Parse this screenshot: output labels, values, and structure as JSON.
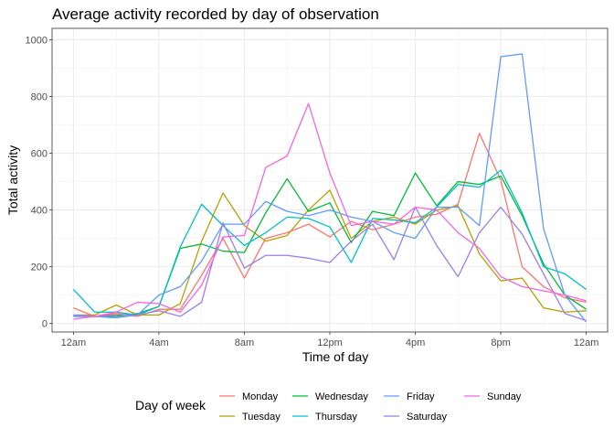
{
  "chart_data": {
    "type": "line",
    "title": "Average activity recorded by day of observation",
    "xlabel": "Time of day",
    "ylabel": "Total activity",
    "x": [
      0,
      1,
      2,
      3,
      4,
      5,
      6,
      7,
      8,
      9,
      10,
      11,
      12,
      13,
      14,
      15,
      16,
      17,
      18,
      19,
      20,
      21,
      22,
      23,
      24
    ],
    "xlim": [
      -1,
      25
    ],
    "ylim": [
      -30,
      1040
    ],
    "x_ticks": [
      0,
      4,
      8,
      12,
      16,
      20,
      24
    ],
    "x_tick_labels": [
      "12am",
      "4am",
      "8am",
      "12pm",
      "4pm",
      "8pm",
      "12am"
    ],
    "y_ticks": [
      0,
      200,
      400,
      600,
      800,
      1000
    ],
    "y_tick_labels": [
      "0",
      "200",
      "400",
      "600",
      "800",
      "1000"
    ],
    "grid": true,
    "legend_title": "Day of week",
    "legend_position": "bottom",
    "series": [
      {
        "name": "Monday",
        "color": "#F8766D",
        "values": [
          55,
          25,
          35,
          25,
          50,
          50,
          170,
          300,
          160,
          300,
          320,
          350,
          305,
          360,
          330,
          350,
          375,
          385,
          420,
          670,
          505,
          200,
          130,
          90,
          75
        ]
      },
      {
        "name": "Tuesday",
        "color": "#B79F00",
        "values": [
          30,
          30,
          65,
          30,
          30,
          70,
          290,
          460,
          345,
          290,
          310,
          400,
          470,
          300,
          360,
          375,
          350,
          400,
          415,
          245,
          150,
          160,
          55,
          40,
          45
        ]
      },
      {
        "name": "Wednesday",
        "color": "#00BA38",
        "values": [
          25,
          25,
          25,
          35,
          60,
          265,
          280,
          255,
          250,
          390,
          510,
          395,
          425,
          285,
          395,
          380,
          530,
          415,
          500,
          490,
          520,
          380,
          210,
          100,
          50
        ]
      },
      {
        "name": "Thursday",
        "color": "#00BFC4",
        "values": [
          120,
          40,
          40,
          30,
          60,
          270,
          420,
          345,
          275,
          320,
          375,
          370,
          340,
          215,
          370,
          365,
          355,
          410,
          490,
          480,
          540,
          390,
          200,
          175,
          120
        ]
      },
      {
        "name": "Friday",
        "color": "#619CFF",
        "values": [
          25,
          25,
          20,
          30,
          100,
          130,
          220,
          350,
          350,
          430,
          395,
          380,
          400,
          375,
          360,
          320,
          300,
          410,
          410,
          345,
          940,
          950,
          335,
          100,
          5
        ]
      },
      {
        "name": "Saturday",
        "color": "#9B7FE8",
        "values": [
          30,
          25,
          30,
          30,
          45,
          25,
          75,
          355,
          195,
          240,
          240,
          230,
          215,
          290,
          350,
          225,
          410,
          275,
          165,
          320,
          410,
          315,
          175,
          35,
          10
        ]
      },
      {
        "name": "Sunday",
        "color": "#F564E3",
        "values": [
          15,
          25,
          40,
          75,
          70,
          40,
          135,
          305,
          310,
          550,
          590,
          775,
          530,
          345,
          360,
          350,
          410,
          400,
          320,
          265,
          165,
          130,
          115,
          100,
          80
        ]
      }
    ]
  }
}
